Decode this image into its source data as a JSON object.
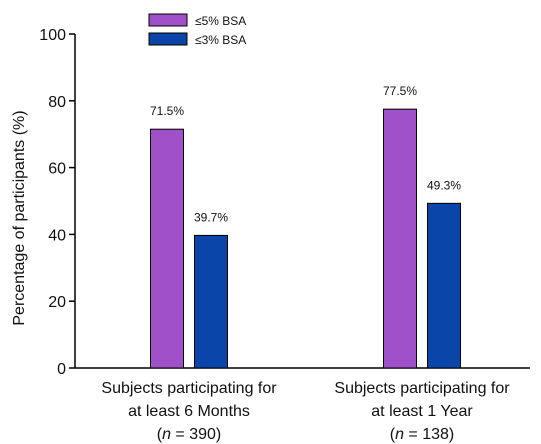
{
  "chart_data": {
    "type": "bar",
    "ylabel": "Percentage of participants (%)",
    "ylim": [
      0,
      100
    ],
    "yticks": [
      0,
      20,
      40,
      60,
      80,
      100
    ],
    "grid": false,
    "legend_position": "top-center",
    "categories": [
      {
        "line1": "Subjects participating for",
        "line2": "at least 6 Months",
        "n_prefix": "(",
        "n_italic": "n",
        "n_suffix": " = 390)"
      },
      {
        "line1": "Subjects participating for",
        "line2": "at least 1 Year",
        "n_prefix": "(",
        "n_italic": "n",
        "n_suffix": " = 138)"
      }
    ],
    "series": [
      {
        "name": "≤5% BSA",
        "color": "#a050c8",
        "values": [
          71.5,
          77.5
        ],
        "labels": [
          "71.5%",
          "77.5%"
        ]
      },
      {
        "name": "≤3% BSA",
        "color": "#0a46aa",
        "values": [
          39.7,
          49.3
        ],
        "labels": [
          "39.7%",
          "49.3%"
        ]
      }
    ]
  }
}
